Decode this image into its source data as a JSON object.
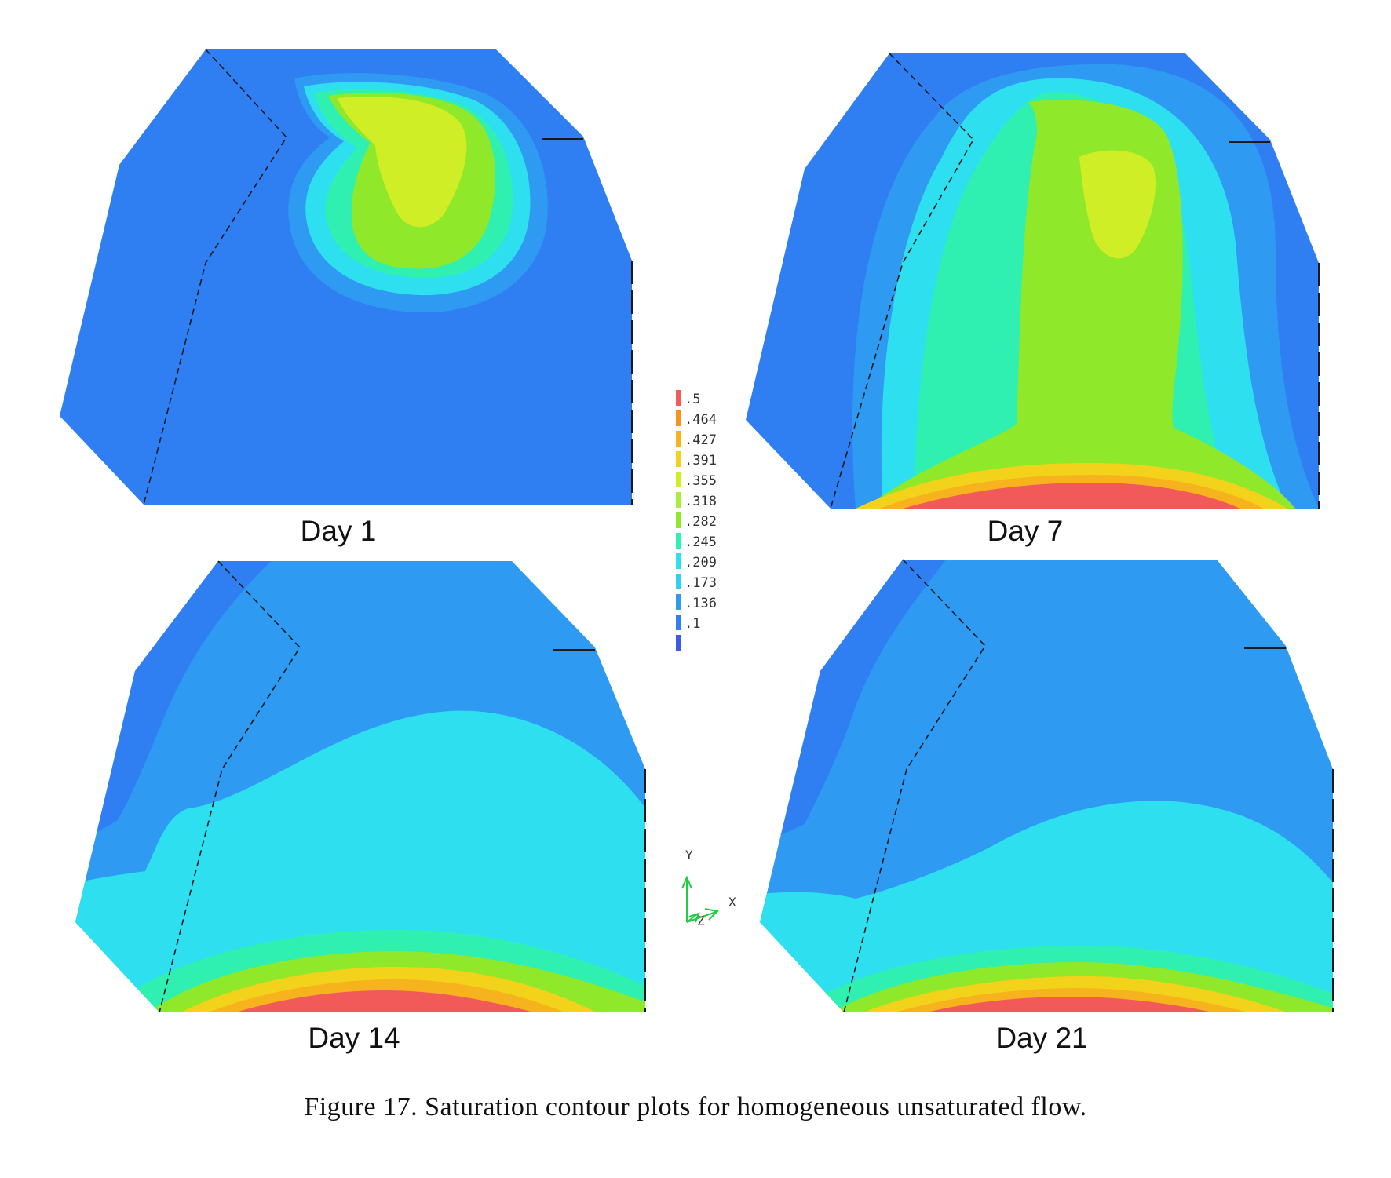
{
  "panels": [
    {
      "label": "Day 1"
    },
    {
      "label": "Day 7"
    },
    {
      "label": "Day 14"
    },
    {
      "label": "Day 21"
    }
  ],
  "legend": {
    "labels": [
      ".5",
      ".464",
      ".427",
      ".391",
      ".355",
      ".318",
      ".282",
      ".245",
      ".209",
      ".173",
      ".136",
      ".1"
    ],
    "colors": [
      "#f25a5a",
      "#f7941d",
      "#f7b31d",
      "#f2d21a",
      "#cfee25",
      "#a8ef3a",
      "#8fe82a",
      "#2ff0b0",
      "#2ee0ef",
      "#2ed0f5",
      "#2e9af2",
      "#2f7ff2",
      "#3a5ce8"
    ]
  },
  "axes": {
    "y": "Y",
    "x": "X",
    "z": "Z"
  },
  "colors": {
    "lowest": "#3a5ce8",
    "deep_blue": "#2f7ff2",
    "blue": "#2e9af2",
    "light_blue": "#2ed0f5",
    "cyan": "#2ee0ef",
    "teal": "#2ff0b0",
    "green": "#8fe82a",
    "yellow_green": "#cfee25",
    "yellow": "#f2d21a",
    "orange": "#f7b31d",
    "red": "#f25a5a"
  },
  "caption": "Figure 17. Saturation contour plots for homogeneous unsaturated flow."
}
